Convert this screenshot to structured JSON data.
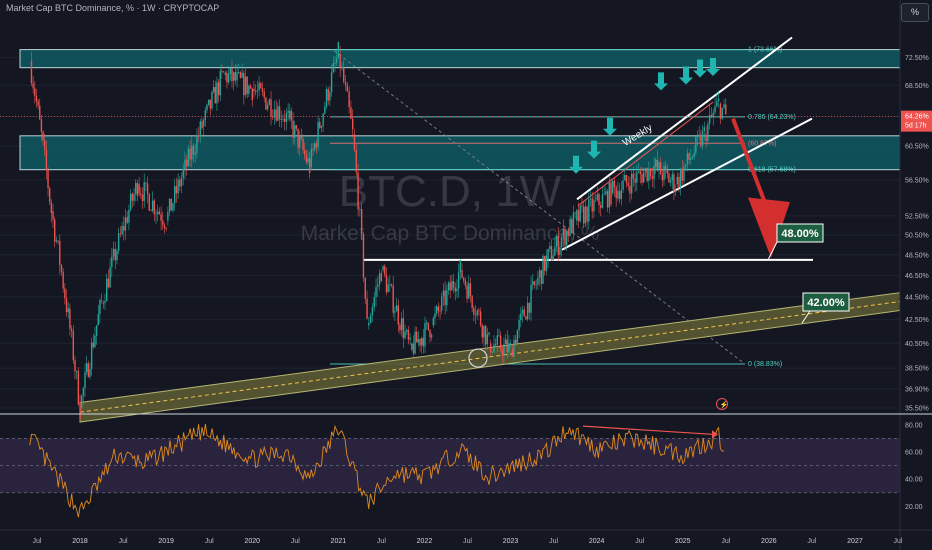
{
  "header": {
    "symbol_title": "Market Cap BTC Dominance, % · 1W · CRYPTOCAP",
    "scale_button": "%"
  },
  "watermark": {
    "symbol": "BTC.D, 1W",
    "name": "Market Cap BTC Dominance, %"
  },
  "annotations": {
    "target_48": "48.00%",
    "target_42": "42.00%",
    "channel_label": "Weekly",
    "current_price": "64.26%",
    "countdown": "5d 17h"
  },
  "colors": {
    "background": "#141722",
    "price_line": "#ef5350",
    "zone_fill": "#0f5a62",
    "zone_border": "#d9f7f7",
    "fib_line": "#4dd0c5",
    "rsi_line": "#e08a1e",
    "rsi_band": "#3a2d55",
    "support_band": "#c9c77a",
    "green_box": "#1e5e40"
  },
  "chart_data": [
    {
      "type": "candlestick",
      "title": "Market Cap BTC Dominance, % · 1W · CRYPTOCAP",
      "y_scale": "log",
      "ylim": [
        35.5,
        75.5
      ],
      "xlim": [
        "2017-05",
        "2027-10"
      ],
      "x_ticks": [
        "Jul",
        "2018",
        "Jul",
        "2019",
        "Jul",
        "2020",
        "Jul",
        "2021",
        "Jul",
        "2022",
        "Jul",
        "2023",
        "Jul",
        "2024",
        "Jul",
        "2025",
        "Jul",
        "2026",
        "Jul",
        "2027",
        "Jul"
      ],
      "y_ticks": [
        "72.50%",
        "68.50%",
        "64.26%",
        "60.50%",
        "56.50%",
        "52.50%",
        "50.50%",
        "48.50%",
        "46.50%",
        "44.50%",
        "42.50%",
        "40.50%",
        "38.50%",
        "36.90%",
        "35.50%"
      ],
      "fib_levels": [
        {
          "label": "1 (73.66%)",
          "value": 73.66
        },
        {
          "label": "0.786 (64.23%)",
          "value": 64.23
        },
        {
          "label": "(60.87%)",
          "value": 60.87
        },
        {
          "label": "0.618 (57.68%)",
          "value": 57.68
        },
        {
          "label": "0 (38.83%)",
          "value": 38.83
        }
      ],
      "horizontal_levels": [
        48.0
      ],
      "approx_price_path": [
        {
          "x": "2017-06",
          "y": 72
        },
        {
          "x": "2017-09",
          "y": 53
        },
        {
          "x": "2018-01",
          "y": 35.5
        },
        {
          "x": "2018-04",
          "y": 44
        },
        {
          "x": "2018-09",
          "y": 56
        },
        {
          "x": "2019-01",
          "y": 52
        },
        {
          "x": "2019-06",
          "y": 63
        },
        {
          "x": "2019-09",
          "y": 70
        },
        {
          "x": "2020-01",
          "y": 68
        },
        {
          "x": "2020-06",
          "y": 64
        },
        {
          "x": "2020-09",
          "y": 58
        },
        {
          "x": "2021-01",
          "y": 73
        },
        {
          "x": "2021-03",
          "y": 62
        },
        {
          "x": "2021-05",
          "y": 42
        },
        {
          "x": "2021-07",
          "y": 47
        },
        {
          "x": "2021-11",
          "y": 40
        },
        {
          "x": "2022-02",
          "y": 42
        },
        {
          "x": "2022-06",
          "y": 47
        },
        {
          "x": "2022-10",
          "y": 40.5
        },
        {
          "x": "2023-01",
          "y": 40
        },
        {
          "x": "2023-06",
          "y": 48
        },
        {
          "x": "2023-10",
          "y": 52
        },
        {
          "x": "2024-03",
          "y": 55
        },
        {
          "x": "2024-09",
          "y": 58
        },
        {
          "x": "2024-12",
          "y": 56
        },
        {
          "x": "2025-04",
          "y": 62
        },
        {
          "x": "2025-06",
          "y": 66
        },
        {
          "x": "2025-07",
          "y": 64.26
        }
      ]
    },
    {
      "type": "line",
      "title": "",
      "ylim": [
        10,
        85
      ],
      "y_ticks": [
        "80.00",
        "60.00",
        "40.00",
        "20.00"
      ],
      "bands": [
        30,
        70
      ],
      "approx_path": [
        {
          "x": "2017-06",
          "y": 72
        },
        {
          "x": "2018-01",
          "y": 15
        },
        {
          "x": "2018-06",
          "y": 58
        },
        {
          "x": "2018-10",
          "y": 52
        },
        {
          "x": "2019-06",
          "y": 75
        },
        {
          "x": "2020-01",
          "y": 55
        },
        {
          "x": "2020-06",
          "y": 60
        },
        {
          "x": "2020-09",
          "y": 40
        },
        {
          "x": "2021-01",
          "y": 78
        },
        {
          "x": "2021-05",
          "y": 22
        },
        {
          "x": "2021-09",
          "y": 45
        },
        {
          "x": "2022-01",
          "y": 42
        },
        {
          "x": "2022-06",
          "y": 62
        },
        {
          "x": "2022-10",
          "y": 42
        },
        {
          "x": "2023-06",
          "y": 60
        },
        {
          "x": "2023-09",
          "y": 78
        },
        {
          "x": "2024-01",
          "y": 62
        },
        {
          "x": "2024-06",
          "y": 70
        },
        {
          "x": "2025-01",
          "y": 58
        },
        {
          "x": "2025-06",
          "y": 72
        },
        {
          "x": "2025-07",
          "y": 60
        }
      ]
    }
  ]
}
